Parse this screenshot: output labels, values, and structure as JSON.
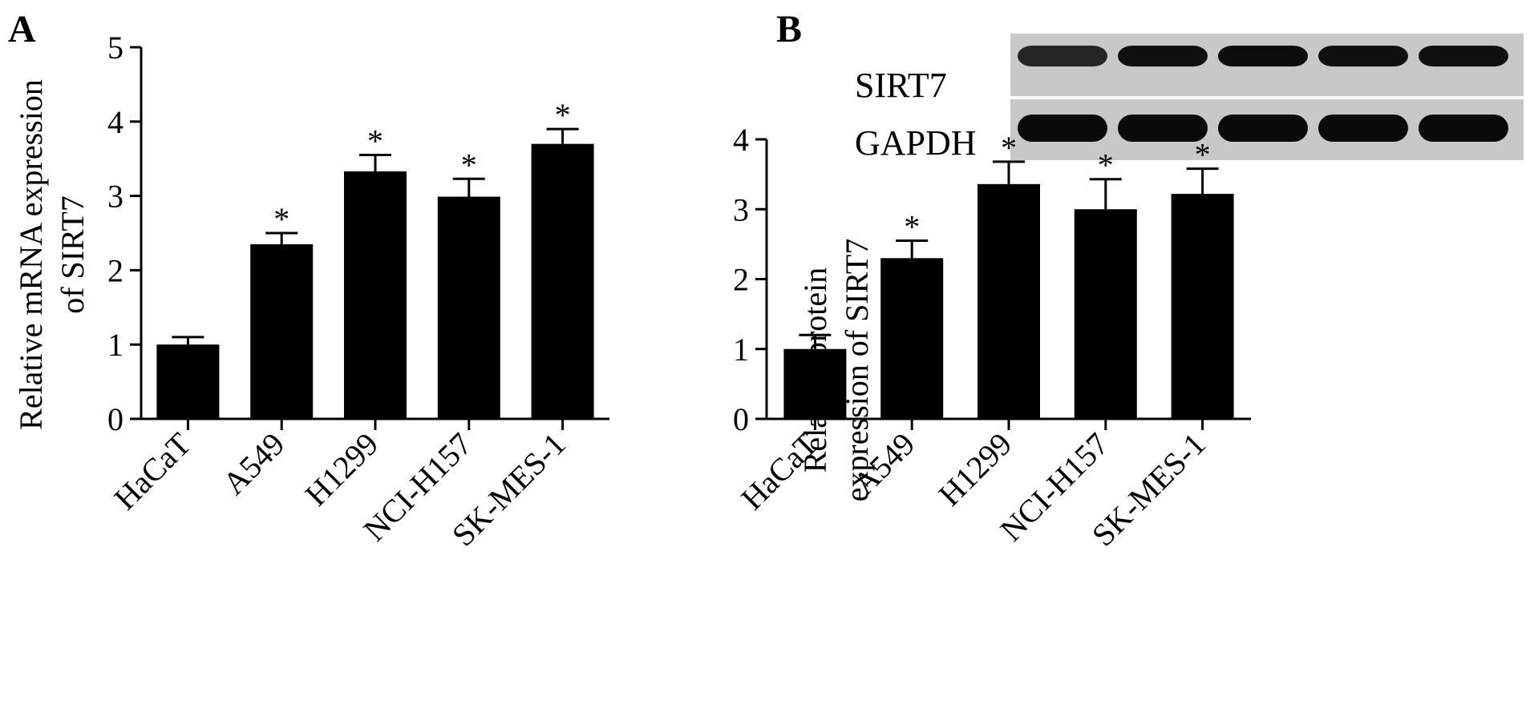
{
  "panels": [
    {
      "letter": "A",
      "ylabel_line1": "Relative mRNA expression",
      "ylabel_line2": "of SIRT7"
    },
    {
      "letter": "B",
      "ylabel_line1": "Relative protein",
      "ylabel_line2": "expression of SIRT7",
      "blot": {
        "rows": [
          "SIRT7",
          "GAPDH"
        ],
        "band_intensity": {
          "SIRT7": [
            0.55,
            0.9,
            0.95,
            0.9,
            0.9
          ],
          "GAPDH": [
            1,
            1,
            1,
            1,
            1
          ]
        }
      }
    }
  ],
  "chart_data": [
    {
      "type": "bar",
      "title": "",
      "xlabel": "",
      "ylabel": "Relative mRNA expression of SIRT7",
      "categories": [
        "HaCaT",
        "A549",
        "H1299",
        "NCI-H157",
        "SK-MES-1"
      ],
      "values": [
        1.0,
        2.35,
        3.33,
        2.99,
        3.7
      ],
      "errors": [
        0.1,
        0.15,
        0.22,
        0.24,
        0.2
      ],
      "significance": [
        "",
        "*",
        "*",
        "*",
        "*"
      ],
      "ylim": [
        0,
        5
      ],
      "yticks": [
        0,
        1,
        2,
        3,
        4,
        5
      ],
      "grid": false
    },
    {
      "type": "bar",
      "title": "",
      "xlabel": "",
      "ylabel": "Relative protein expression of SIRT7",
      "categories": [
        "HaCaT",
        "A549",
        "H1299",
        "NCI-H157",
        "SK-MES-1"
      ],
      "values": [
        1.0,
        2.3,
        3.36,
        3.0,
        3.22
      ],
      "errors": [
        0.2,
        0.25,
        0.32,
        0.43,
        0.36
      ],
      "significance": [
        "",
        "*",
        "*",
        "*",
        "*"
      ],
      "ylim": [
        0,
        4
      ],
      "yticks": [
        0,
        1,
        2,
        3,
        4
      ],
      "grid": false
    }
  ]
}
